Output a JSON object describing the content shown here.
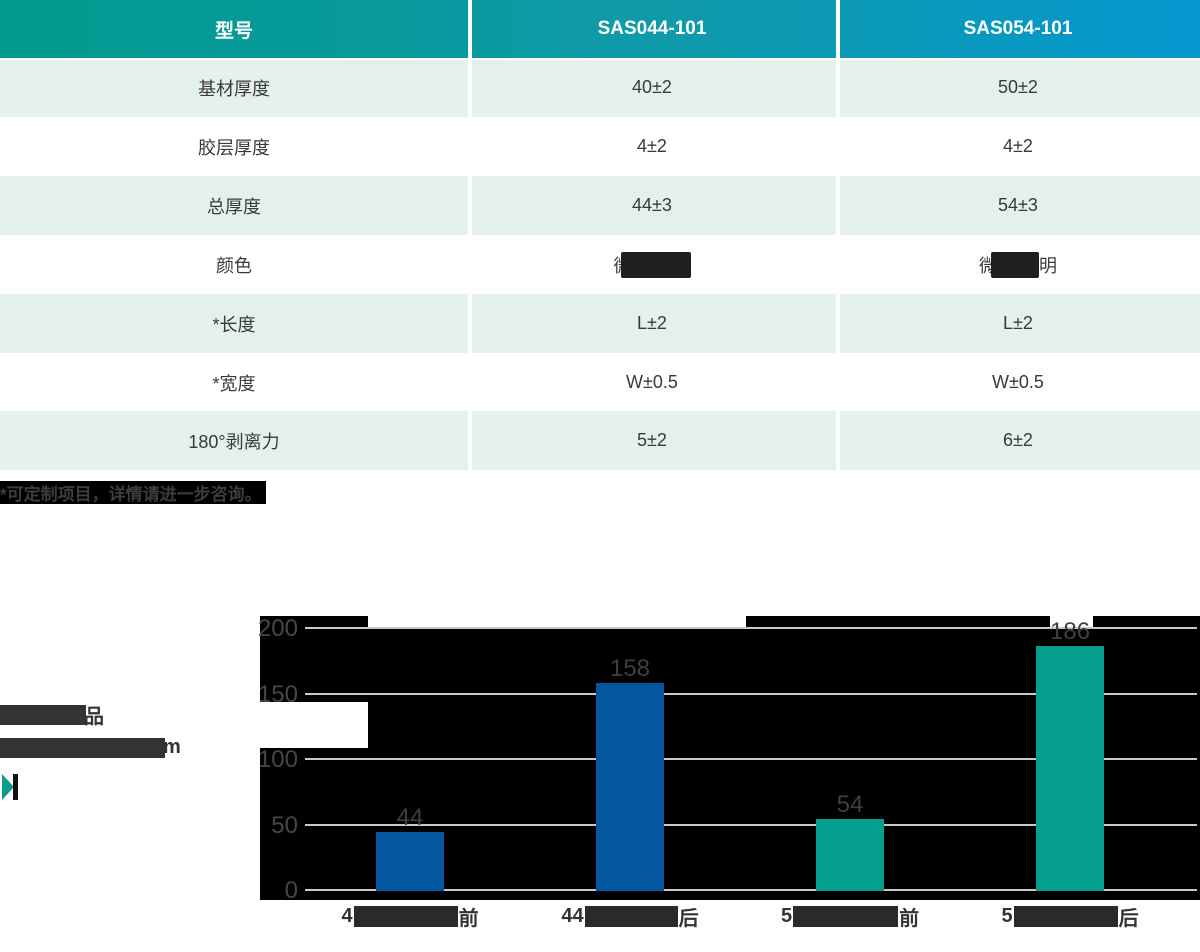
{
  "table": {
    "header": {
      "model_col": "型号",
      "model_a": "SAS044-101",
      "model_b": "SAS054-101"
    },
    "rows": [
      {
        "label": "基材厚度",
        "a": "40±2",
        "b": "50±2"
      },
      {
        "label": "胶层厚度",
        "a": "4±2",
        "b": "4±2"
      },
      {
        "label": "总厚度",
        "a": "44±3",
        "b": "54±3"
      },
      {
        "label": "颜色",
        "a": "微透明",
        "b": "微透明"
      },
      {
        "label": "*长度",
        "a": "L±2",
        "b": "L±2"
      },
      {
        "label": "*宽度",
        "a": "W±0.5",
        "b": "W±0.5"
      },
      {
        "label": "180°剥离力",
        "a": "5±2",
        "b": "6±2"
      }
    ],
    "footnote": "*可定制项目，详情请进一步咨询。"
  },
  "aside": {
    "line1_visible_suffix": "品",
    "line2_visible_suffix": "m"
  },
  "chart_data": {
    "type": "bar",
    "title": "",
    "categories": [
      {
        "prefix": "4",
        "suffix": "前",
        "redacted": true
      },
      {
        "prefix": "44",
        "suffix": "后",
        "redacted": true
      },
      {
        "prefix": "5",
        "suffix": "前",
        "redacted": true
      },
      {
        "prefix": "5",
        "suffix": "后",
        "redacted": true
      }
    ],
    "values": [
      44,
      158,
      54,
      186
    ],
    "bar_colors": [
      "#0456a0",
      "#0456a0",
      "#04a08d",
      "#04a08d"
    ],
    "yticks": [
      0,
      50,
      100,
      150,
      200
    ],
    "ylim": [
      0,
      200
    ],
    "grid": true,
    "plot_background": "#000000",
    "gridline_color": "#c8c8c8"
  },
  "colors": {
    "header_gradient_left": "#009a8d",
    "header_gradient_right": "#0497ce",
    "stripe_row": "#e3f0ec",
    "body_text": "#3a3a3a",
    "bar_blue": "#0456a0",
    "bar_teal": "#04a08d"
  }
}
